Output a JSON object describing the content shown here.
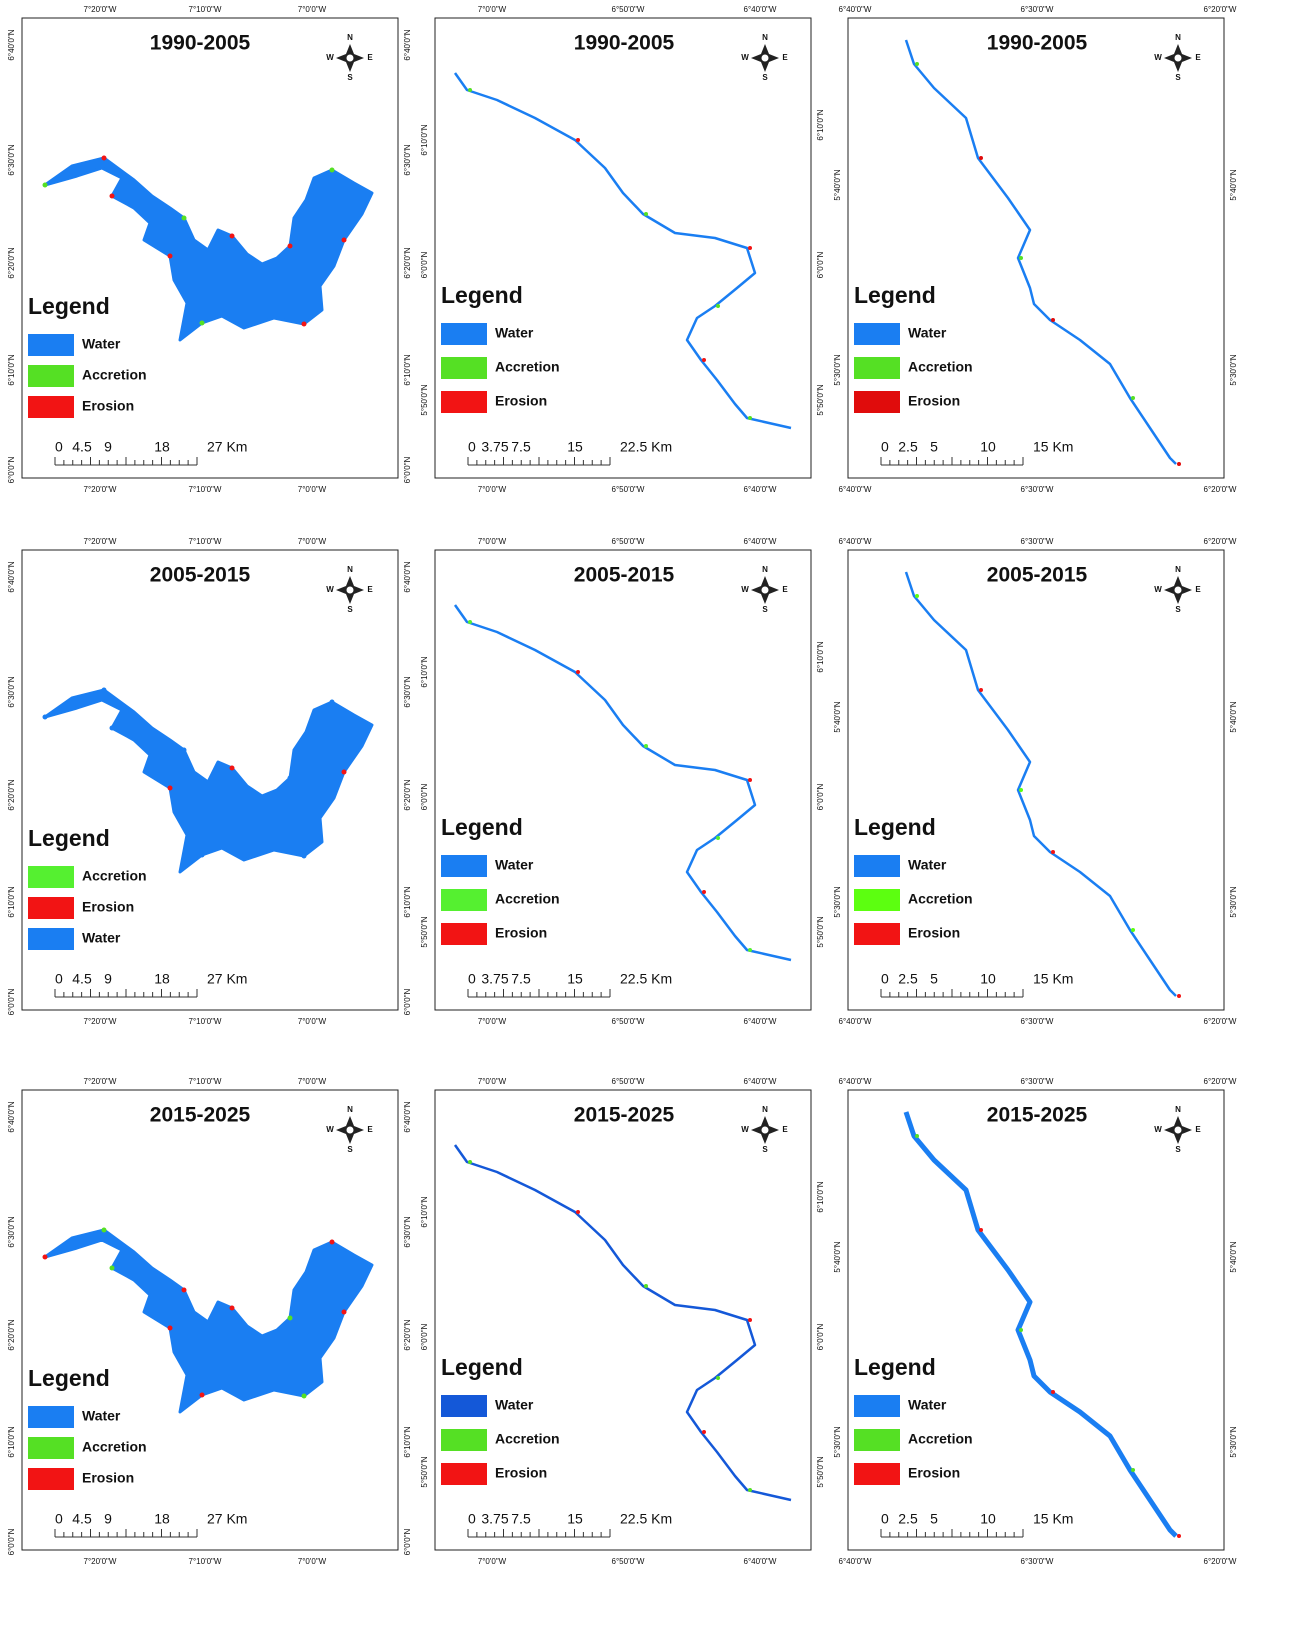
{
  "panels": [
    {
      "title": "1990-2005",
      "legend_title": "Legend",
      "legend": [
        {
          "label": "Water",
          "color": "#1a7ef2"
        },
        {
          "label": "Accretion",
          "color": "#55e024"
        },
        {
          "label": "Erosion",
          "color": "#f21414"
        }
      ],
      "scale": [
        "0",
        "4.5",
        "9",
        "18",
        "27 Km"
      ],
      "compass": {
        "n": "N",
        "e": "E",
        "s": "S",
        "w": "W"
      },
      "top_ticks": [
        "7°20'0\"W",
        "7°10'0\"W",
        "7°0'0\"W"
      ],
      "bottom_ticks": [
        "7°20'0\"W",
        "7°10'0\"W",
        "7°0'0\"W"
      ],
      "left_ticks": [
        "6°40'0\"N",
        "6°30'0\"N",
        "6°20'0\"N",
        "6°10'0\"N",
        "6°0'0\"N"
      ],
      "right_ticks": [
        "6°40'0\"N",
        "6°30'0\"N",
        "6°20'0\"N",
        "6°10'0\"N",
        "6°0'0\"N"
      ]
    },
    {
      "title": "1990-2005",
      "legend_title": "Legend",
      "legend": [
        {
          "label": "Water",
          "color": "#1a7ef2"
        },
        {
          "label": "Accretion",
          "color": "#55e024"
        },
        {
          "label": "Erosion",
          "color": "#f21414"
        }
      ],
      "scale": [
        "0",
        "3.75",
        "7.5",
        "15",
        "22.5 Km"
      ],
      "compass": {
        "n": "N",
        "e": "E",
        "s": "S",
        "w": "W"
      },
      "top_ticks": [
        "7°0'0\"W",
        "6°50'0\"W",
        "6°40'0\"W"
      ],
      "bottom_ticks": [
        "7°0'0\"W",
        "6°50'0\"W",
        "6°40'0\"W"
      ],
      "left_ticks": [
        "6°10'0\"N",
        "6°0'0\"N",
        "5°50'0\"N"
      ],
      "right_ticks": [
        "6°10'0\"N",
        "6°0'0\"N",
        "5°50'0\"N"
      ]
    },
    {
      "title": "1990-2005",
      "legend_title": "Legend",
      "legend": [
        {
          "label": "Water",
          "color": "#1a7ef2"
        },
        {
          "label": "Accretion",
          "color": "#55e024"
        },
        {
          "label": "Erosion",
          "color": "#e00c0c"
        }
      ],
      "scale": [
        "0",
        "2.5",
        "5",
        "10",
        "15 Km"
      ],
      "compass": {
        "n": "N",
        "e": "E",
        "s": "S",
        "w": "W"
      },
      "top_ticks": [
        "6°40'0\"W",
        "6°30'0\"W",
        "6°20'0\"W"
      ],
      "bottom_ticks": [
        "6°40'0\"W",
        "6°30'0\"W",
        "6°20'0\"W"
      ],
      "left_ticks": [
        "5°40'0\"N",
        "5°30'0\"N"
      ],
      "right_ticks": [
        "5°40'0\"N",
        "5°30'0\"N"
      ]
    },
    {
      "title": "2005-2015",
      "legend_title": "Legend",
      "legend": [
        {
          "label": "Accretion",
          "color": "#55f030"
        },
        {
          "label": "Erosion",
          "color": "#f21414"
        },
        {
          "label": "Water",
          "color": "#1a7ef2"
        }
      ],
      "scale": [
        "0",
        "4.5",
        "9",
        "18",
        "27 Km"
      ],
      "compass": {
        "n": "N",
        "e": "E",
        "s": "S",
        "w": "W"
      },
      "top_ticks": [
        "7°20'0\"W",
        "7°10'0\"W",
        "7°0'0\"W"
      ],
      "bottom_ticks": [
        "7°20'0\"W",
        "7°10'0\"W",
        "7°0'0\"W"
      ],
      "left_ticks": [
        "6°40'0\"N",
        "6°30'0\"N",
        "6°20'0\"N",
        "6°10'0\"N",
        "6°0'0\"N"
      ],
      "right_ticks": [
        "6°40'0\"N",
        "6°30'0\"N",
        "6°20'0\"N",
        "6°10'0\"N",
        "6°0'0\"N"
      ]
    },
    {
      "title": "2005-2015",
      "legend_title": "Legend",
      "legend": [
        {
          "label": "Water",
          "color": "#1a7ef2"
        },
        {
          "label": "Accretion",
          "color": "#55f030"
        },
        {
          "label": "Erosion",
          "color": "#f21414"
        }
      ],
      "scale": [
        "0",
        "3.75",
        "7.5",
        "15",
        "22.5 Km"
      ],
      "compass": {
        "n": "N",
        "e": "E",
        "s": "S",
        "w": "W"
      },
      "top_ticks": [
        "7°0'0\"W",
        "6°50'0\"W",
        "6°40'0\"W"
      ],
      "bottom_ticks": [
        "7°0'0\"W",
        "6°50'0\"W",
        "6°40'0\"W"
      ],
      "left_ticks": [
        "6°10'0\"N",
        "6°0'0\"N",
        "5°50'0\"N"
      ],
      "right_ticks": [
        "6°10'0\"N",
        "6°0'0\"N",
        "5°50'0\"N"
      ]
    },
    {
      "title": "2005-2015",
      "legend_title": "Legend",
      "legend": [
        {
          "label": "Water",
          "color": "#1a7ef2"
        },
        {
          "label": "Accretion",
          "color": "#5cff10"
        },
        {
          "label": "Erosion",
          "color": "#f21414"
        }
      ],
      "scale": [
        "0",
        "2.5",
        "5",
        "10",
        "15 Km"
      ],
      "compass": {
        "n": "N",
        "e": "E",
        "s": "S",
        "w": "W"
      },
      "top_ticks": [
        "6°40'0\"W",
        "6°30'0\"W",
        "6°20'0\"W"
      ],
      "bottom_ticks": [
        "6°40'0\"W",
        "6°30'0\"W",
        "6°20'0\"W"
      ],
      "left_ticks": [
        "5°40'0\"N",
        "5°30'0\"N"
      ],
      "right_ticks": [
        "5°40'0\"N",
        "5°30'0\"N"
      ]
    },
    {
      "title": "2015-2025",
      "legend_title": "Legend",
      "legend": [
        {
          "label": "Water",
          "color": "#1a7ef2"
        },
        {
          "label": "Accretion",
          "color": "#55e024"
        },
        {
          "label": "Erosion",
          "color": "#f21414"
        }
      ],
      "scale": [
        "0",
        "4.5",
        "9",
        "18",
        "27 Km"
      ],
      "compass": {
        "n": "N",
        "e": "E",
        "s": "S",
        "w": "W"
      },
      "top_ticks": [
        "7°20'0\"W",
        "7°10'0\"W",
        "7°0'0\"W"
      ],
      "bottom_ticks": [
        "7°20'0\"W",
        "7°10'0\"W",
        "7°0'0\"W"
      ],
      "left_ticks": [
        "6°40'0\"N",
        "6°30'0\"N",
        "6°20'0\"N",
        "6°10'0\"N",
        "6°0'0\"N"
      ],
      "right_ticks": [
        "6°40'0\"N",
        "6°30'0\"N",
        "6°20'0\"N",
        "6°10'0\"N",
        "6°0'0\"N"
      ]
    },
    {
      "title": "2015-2025",
      "legend_title": "Legend",
      "legend": [
        {
          "label": "Water",
          "color": "#1458d8"
        },
        {
          "label": "Accretion",
          "color": "#55e024"
        },
        {
          "label": "Erosion",
          "color": "#f21414"
        }
      ],
      "scale": [
        "0",
        "3.75",
        "7.5",
        "15",
        "22.5 Km"
      ],
      "compass": {
        "n": "N",
        "e": "E",
        "s": "S",
        "w": "W"
      },
      "top_ticks": [
        "7°0'0\"W",
        "6°50'0\"W",
        "6°40'0\"W"
      ],
      "bottom_ticks": [
        "7°0'0\"W",
        "6°50'0\"W",
        "6°40'0\"W"
      ],
      "left_ticks": [
        "6°10'0\"N",
        "6°0'0\"N",
        "5°50'0\"N"
      ],
      "right_ticks": [
        "6°10'0\"N",
        "6°0'0\"N",
        "5°50'0\"N"
      ]
    },
    {
      "title": "2015-2025",
      "legend_title": "Legend",
      "legend": [
        {
          "label": "Water",
          "color": "#1a7ef2"
        },
        {
          "label": "Accretion",
          "color": "#55e024"
        },
        {
          "label": "Erosion",
          "color": "#f21414"
        }
      ],
      "scale": [
        "0",
        "2.5",
        "5",
        "10",
        "15 Km"
      ],
      "compass": {
        "n": "N",
        "e": "E",
        "s": "S",
        "w": "W"
      },
      "top_ticks": [
        "6°40'0\"W",
        "6°30'0\"W",
        "6°20'0\"W"
      ],
      "bottom_ticks": [
        "6°40'0\"W",
        "6°30'0\"W",
        "6°20'0\"W"
      ],
      "left_ticks": [
        "5°40'0\"N",
        "5°30'0\"N"
      ],
      "right_ticks": [
        "5°40'0\"N",
        "5°30'0\"N"
      ]
    }
  ]
}
